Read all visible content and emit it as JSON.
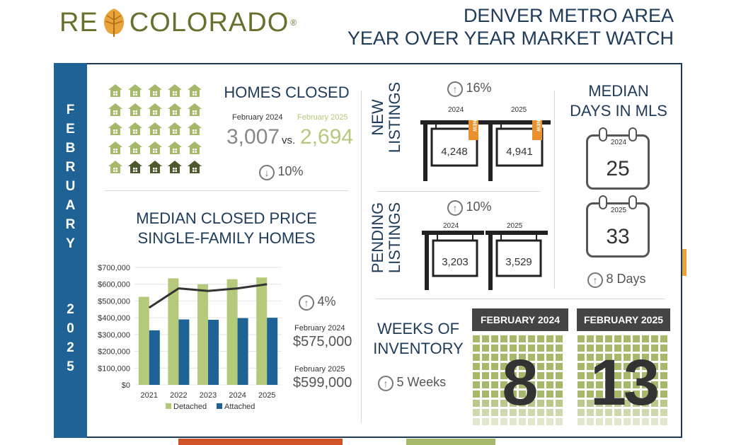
{
  "header": {
    "logo_text_left": "RE",
    "logo_text_right": "COLORADO",
    "logo_registered": "®",
    "title_line1": "DENVER METRO AREA",
    "title_line2": "YEAR OVER YEAR MARKET WATCH"
  },
  "sidebar": {
    "month_letters": [
      "F",
      "E",
      "B",
      "R",
      "U",
      "A",
      "R",
      "Y"
    ],
    "year_digits": [
      "2",
      "0",
      "2",
      "5"
    ]
  },
  "homes_closed": {
    "title": "HOMES CLOSED",
    "label_2024": "February 2024",
    "label_2025": "February 2025",
    "value_2024": "3,007",
    "vs": "vs.",
    "value_2025": "2,694",
    "change": "10%",
    "direction": "down",
    "icon_grid": {
      "filled": 21,
      "total": 25
    },
    "colors": {
      "light": "#a6b96b",
      "dark": "#4d5a2e"
    }
  },
  "new_listings": {
    "title_line1": "NEW",
    "title_line2": "LISTINGS",
    "change": "16%",
    "direction": "up",
    "year_2024": "2024",
    "year_2025": "2025",
    "value_2024": "4,248",
    "value_2025": "4,941",
    "rider": "NEW"
  },
  "pending_listings": {
    "title_line1": "PENDING",
    "title_line2": "LISTINGS",
    "change": "10%",
    "direction": "up",
    "year_2024": "2024",
    "year_2025": "2025",
    "value_2024": "3,203",
    "value_2025": "3,529"
  },
  "median_days": {
    "title_line1": "MEDIAN",
    "title_line2": "DAYS IN MLS",
    "year_2024": "2024",
    "year_2025": "2025",
    "value_2024": "25",
    "value_2025": "33",
    "change": "8 Days",
    "direction": "up"
  },
  "median_price": {
    "title_line1": "MEDIAN CLOSED PRICE",
    "title_line2": "SINGLE-FAMILY HOMES",
    "change": "4%",
    "direction": "up",
    "label_2024": "February 2024",
    "value_2024": "$575,000",
    "label_2025": "February 2025",
    "value_2025": "$599,000"
  },
  "weeks_inventory": {
    "title_line1": "WEEKS OF",
    "title_line2": "INVENTORY",
    "change": "5 Weeks",
    "direction": "up",
    "label_2024": "FEBRUARY 2024",
    "label_2025": "FEBRUARY 2025",
    "value_2024": "8",
    "value_2025": "13"
  },
  "chart_data": {
    "type": "bar",
    "categories": [
      "2021",
      "2022",
      "2023",
      "2024",
      "2025"
    ],
    "series": [
      {
        "name": "Detached",
        "values": [
          525000,
          635000,
          600000,
          630000,
          640000
        ],
        "color": "#b5c97a"
      },
      {
        "name": "Attached",
        "values": [
          325000,
          390000,
          388000,
          398000,
          400000
        ],
        "color": "#1e6296"
      }
    ],
    "line_values": [
      460000,
      575000,
      560000,
      575000,
      600000
    ],
    "line_color": "#333333",
    "yticks": [
      "$0",
      "$100,000",
      "$200,000",
      "$300,000",
      "$400,000",
      "$500,000",
      "$600,000",
      "$700,000"
    ],
    "ylim": [
      0,
      700000
    ],
    "legend_placement": "bottom"
  }
}
